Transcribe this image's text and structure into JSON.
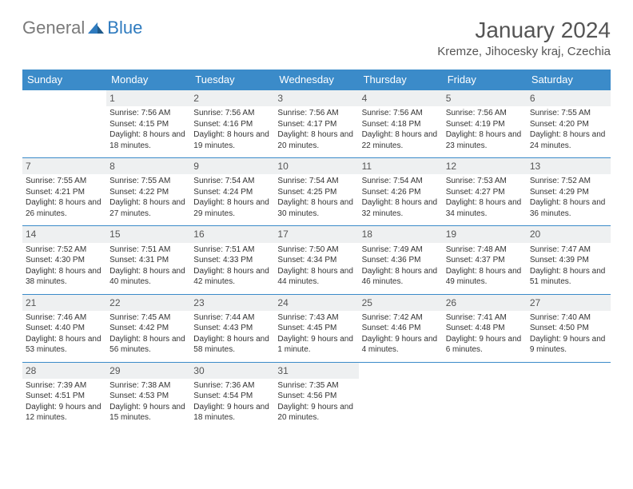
{
  "logo": {
    "general": "General",
    "blue": "Blue"
  },
  "title": "January 2024",
  "location": "Kremze, Jihocesky kraj, Czechia",
  "colors": {
    "header_bg": "#3b8bc9",
    "header_fg": "#ffffff",
    "daynum_bg": "#eef0f1",
    "border": "#3b8bc9",
    "text": "#333333",
    "muted": "#555555",
    "logo_gray": "#7a7a7a",
    "logo_blue": "#2f7bbf"
  },
  "weekdays": [
    "Sunday",
    "Monday",
    "Tuesday",
    "Wednesday",
    "Thursday",
    "Friday",
    "Saturday"
  ],
  "weeks": [
    [
      {
        "n": "",
        "sr": "",
        "ss": "",
        "dl": ""
      },
      {
        "n": "1",
        "sr": "7:56 AM",
        "ss": "4:15 PM",
        "dl": "8 hours and 18 minutes."
      },
      {
        "n": "2",
        "sr": "7:56 AM",
        "ss": "4:16 PM",
        "dl": "8 hours and 19 minutes."
      },
      {
        "n": "3",
        "sr": "7:56 AM",
        "ss": "4:17 PM",
        "dl": "8 hours and 20 minutes."
      },
      {
        "n": "4",
        "sr": "7:56 AM",
        "ss": "4:18 PM",
        "dl": "8 hours and 22 minutes."
      },
      {
        "n": "5",
        "sr": "7:56 AM",
        "ss": "4:19 PM",
        "dl": "8 hours and 23 minutes."
      },
      {
        "n": "6",
        "sr": "7:55 AM",
        "ss": "4:20 PM",
        "dl": "8 hours and 24 minutes."
      }
    ],
    [
      {
        "n": "7",
        "sr": "7:55 AM",
        "ss": "4:21 PM",
        "dl": "8 hours and 26 minutes."
      },
      {
        "n": "8",
        "sr": "7:55 AM",
        "ss": "4:22 PM",
        "dl": "8 hours and 27 minutes."
      },
      {
        "n": "9",
        "sr": "7:54 AM",
        "ss": "4:24 PM",
        "dl": "8 hours and 29 minutes."
      },
      {
        "n": "10",
        "sr": "7:54 AM",
        "ss": "4:25 PM",
        "dl": "8 hours and 30 minutes."
      },
      {
        "n": "11",
        "sr": "7:54 AM",
        "ss": "4:26 PM",
        "dl": "8 hours and 32 minutes."
      },
      {
        "n": "12",
        "sr": "7:53 AM",
        "ss": "4:27 PM",
        "dl": "8 hours and 34 minutes."
      },
      {
        "n": "13",
        "sr": "7:52 AM",
        "ss": "4:29 PM",
        "dl": "8 hours and 36 minutes."
      }
    ],
    [
      {
        "n": "14",
        "sr": "7:52 AM",
        "ss": "4:30 PM",
        "dl": "8 hours and 38 minutes."
      },
      {
        "n": "15",
        "sr": "7:51 AM",
        "ss": "4:31 PM",
        "dl": "8 hours and 40 minutes."
      },
      {
        "n": "16",
        "sr": "7:51 AM",
        "ss": "4:33 PM",
        "dl": "8 hours and 42 minutes."
      },
      {
        "n": "17",
        "sr": "7:50 AM",
        "ss": "4:34 PM",
        "dl": "8 hours and 44 minutes."
      },
      {
        "n": "18",
        "sr": "7:49 AM",
        "ss": "4:36 PM",
        "dl": "8 hours and 46 minutes."
      },
      {
        "n": "19",
        "sr": "7:48 AM",
        "ss": "4:37 PM",
        "dl": "8 hours and 49 minutes."
      },
      {
        "n": "20",
        "sr": "7:47 AM",
        "ss": "4:39 PM",
        "dl": "8 hours and 51 minutes."
      }
    ],
    [
      {
        "n": "21",
        "sr": "7:46 AM",
        "ss": "4:40 PM",
        "dl": "8 hours and 53 minutes."
      },
      {
        "n": "22",
        "sr": "7:45 AM",
        "ss": "4:42 PM",
        "dl": "8 hours and 56 minutes."
      },
      {
        "n": "23",
        "sr": "7:44 AM",
        "ss": "4:43 PM",
        "dl": "8 hours and 58 minutes."
      },
      {
        "n": "24",
        "sr": "7:43 AM",
        "ss": "4:45 PM",
        "dl": "9 hours and 1 minute."
      },
      {
        "n": "25",
        "sr": "7:42 AM",
        "ss": "4:46 PM",
        "dl": "9 hours and 4 minutes."
      },
      {
        "n": "26",
        "sr": "7:41 AM",
        "ss": "4:48 PM",
        "dl": "9 hours and 6 minutes."
      },
      {
        "n": "27",
        "sr": "7:40 AM",
        "ss": "4:50 PM",
        "dl": "9 hours and 9 minutes."
      }
    ],
    [
      {
        "n": "28",
        "sr": "7:39 AM",
        "ss": "4:51 PM",
        "dl": "9 hours and 12 minutes."
      },
      {
        "n": "29",
        "sr": "7:38 AM",
        "ss": "4:53 PM",
        "dl": "9 hours and 15 minutes."
      },
      {
        "n": "30",
        "sr": "7:36 AM",
        "ss": "4:54 PM",
        "dl": "9 hours and 18 minutes."
      },
      {
        "n": "31",
        "sr": "7:35 AM",
        "ss": "4:56 PM",
        "dl": "9 hours and 20 minutes."
      },
      {
        "n": "",
        "sr": "",
        "ss": "",
        "dl": ""
      },
      {
        "n": "",
        "sr": "",
        "ss": "",
        "dl": ""
      },
      {
        "n": "",
        "sr": "",
        "ss": "",
        "dl": ""
      }
    ]
  ],
  "labels": {
    "sunrise": "Sunrise: ",
    "sunset": "Sunset: ",
    "daylight": "Daylight: "
  }
}
